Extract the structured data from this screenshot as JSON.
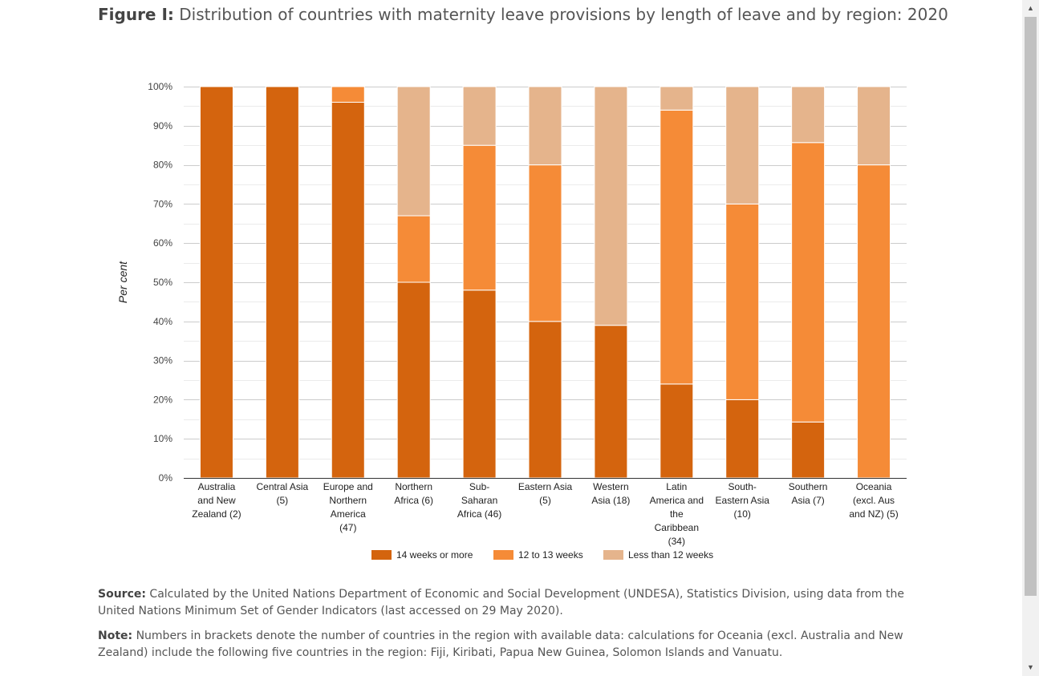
{
  "figure": {
    "label": "Figure I:",
    "title": "Distribution of countries with maternity leave provisions by length of leave and by region: 2020"
  },
  "chart_data": {
    "type": "bar",
    "stacked": true,
    "ylabel": "Per cent",
    "ylim": [
      0,
      100
    ],
    "yticks": [
      "0%",
      "10%",
      "20%",
      "30%",
      "40%",
      "50%",
      "60%",
      "70%",
      "80%",
      "90%",
      "100%"
    ],
    "grid": true,
    "legend_position": "bottom",
    "categories": [
      "Australia and New Zealand (2)",
      "Central Asia (5)",
      "Europe and Northern America (47)",
      "Northern Africa (6)",
      "Sub-Saharan Africa (46)",
      "Eastern Asia (5)",
      "Western Asia (18)",
      "Latin America and the Caribbean (34)",
      "South-Eastern Asia (10)",
      "Southern Asia (7)",
      "Oceania (excl. Aus and NZ) (5)"
    ],
    "category_lines": [
      [
        "Australia",
        "and New",
        "Zealand (2)"
      ],
      [
        "Central Asia",
        "(5)"
      ],
      [
        "Europe and",
        "Northern",
        "America",
        "(47)"
      ],
      [
        "Northern",
        "Africa (6)"
      ],
      [
        "Sub-",
        "Saharan",
        "Africa (46)"
      ],
      [
        "Eastern Asia",
        "(5)"
      ],
      [
        "Western",
        "Asia (18)"
      ],
      [
        "Latin",
        "America and",
        "the",
        "Caribbean",
        "(34)"
      ],
      [
        "South-",
        "Eastern Asia",
        "(10)"
      ],
      [
        "Southern",
        "Asia (7)"
      ],
      [
        "Oceania",
        "(excl. Aus",
        "and NZ) (5)"
      ]
    ],
    "series": [
      {
        "name": "14 weeks or more",
        "color": "#d4640e",
        "values": [
          100,
          100,
          96,
          50,
          48,
          40,
          39,
          24,
          20,
          14.3,
          0
        ]
      },
      {
        "name": "12 to 13 weeks",
        "color": "#f58b37",
        "values": [
          0,
          0,
          4,
          17,
          37,
          40,
          0,
          70,
          50,
          71.4,
          80
        ]
      },
      {
        "name": "Less than 12 weeks",
        "color": "#e5b48c",
        "values": [
          0,
          0,
          0,
          33,
          15,
          20,
          61,
          6,
          30,
          14.3,
          20
        ]
      }
    ]
  },
  "source": {
    "label": "Source:",
    "text": "Calculated by the United Nations Department of Economic and Social Development (UNDESA), Statistics Division, using data from the United Nations Minimum Set of Gender Indicators (last accessed on 29 May 2020)."
  },
  "note": {
    "label": "Note:",
    "text": "Numbers in brackets denote the number of countries in the region with available data: calculations for Oceania (excl. Australia and New Zealand) include the following five countries in the region: Fiji, Kiribati, Papua New Guinea, Solomon Islands and Vanuatu."
  },
  "scrollbar": {
    "up_icon": "▲",
    "down_icon": "▼"
  }
}
